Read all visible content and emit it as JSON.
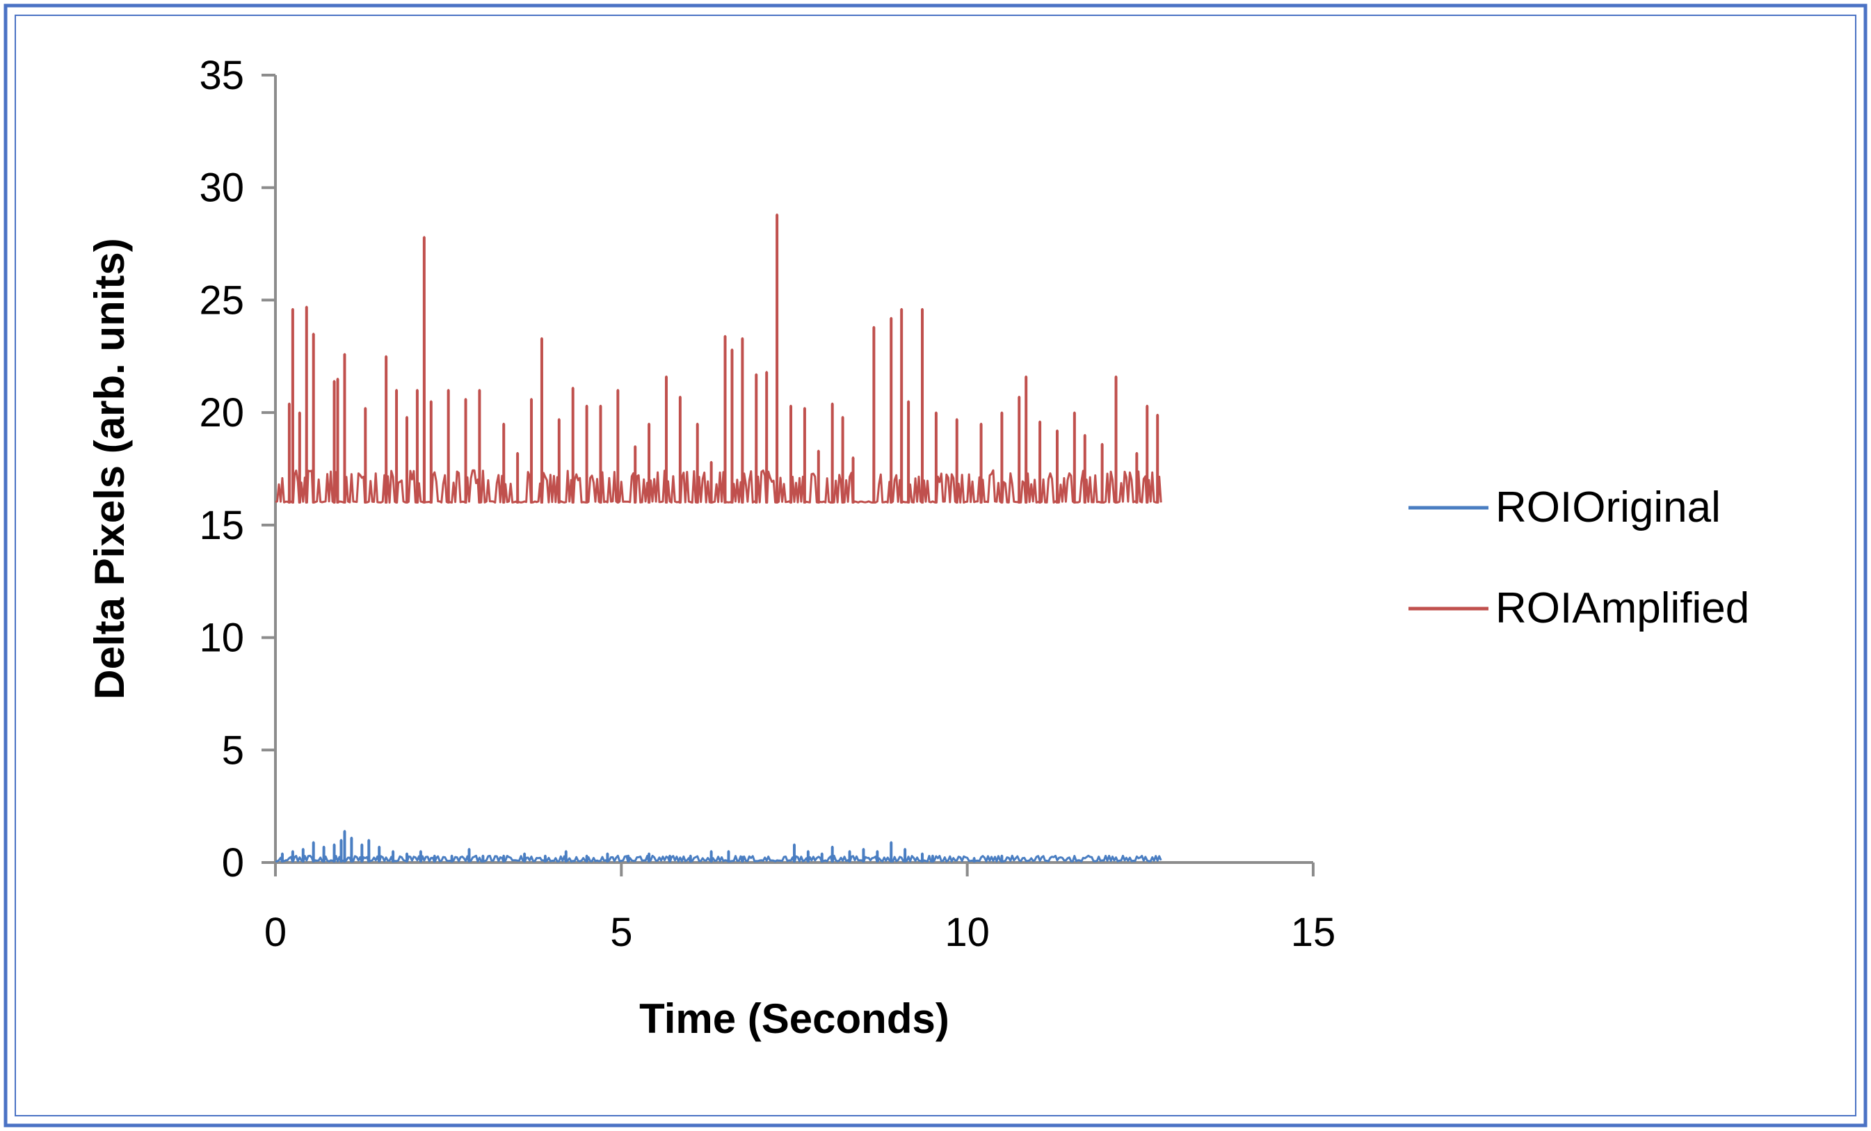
{
  "chart_data": {
    "type": "line",
    "title": "",
    "xlabel": "Time (Seconds)",
    "ylabel": "Delta Pixels (arb. units)",
    "xlim": [
      0,
      15
    ],
    "ylim": [
      0,
      35
    ],
    "x_ticks": [
      "0",
      "5",
      "10",
      "15"
    ],
    "y_ticks": [
      "0",
      "5",
      "10",
      "15",
      "20",
      "25",
      "30",
      "35"
    ],
    "grid": false,
    "legend_position": "right",
    "frame_color": "#4a72c4",
    "series": [
      {
        "name": "ROIOriginal",
        "color": "#4a7ec2",
        "x_range": [
          0,
          12.8
        ],
        "baseline": 0.05,
        "peaks": [
          [
            0.1,
            0.4
          ],
          [
            0.25,
            0.5
          ],
          [
            0.4,
            0.6
          ],
          [
            0.55,
            0.9
          ],
          [
            0.7,
            0.7
          ],
          [
            0.85,
            0.8
          ],
          [
            0.95,
            1.0
          ],
          [
            1.0,
            1.4
          ],
          [
            1.1,
            1.1
          ],
          [
            1.25,
            0.8
          ],
          [
            1.35,
            1.0
          ],
          [
            1.5,
            0.7
          ],
          [
            1.7,
            0.5
          ],
          [
            1.9,
            0.4
          ],
          [
            2.1,
            0.5
          ],
          [
            2.3,
            0.3
          ],
          [
            2.55,
            0.3
          ],
          [
            2.8,
            0.6
          ],
          [
            3.0,
            0.3
          ],
          [
            3.3,
            0.3
          ],
          [
            3.6,
            0.4
          ],
          [
            3.9,
            0.3
          ],
          [
            4.2,
            0.5
          ],
          [
            4.5,
            0.3
          ],
          [
            4.8,
            0.4
          ],
          [
            5.1,
            0.3
          ],
          [
            5.4,
            0.4
          ],
          [
            5.7,
            0.3
          ],
          [
            6.0,
            0.3
          ],
          [
            6.3,
            0.5
          ],
          [
            6.55,
            0.5
          ],
          [
            6.75,
            0.2
          ],
          [
            7.5,
            0.8
          ],
          [
            7.7,
            0.5
          ],
          [
            7.9,
            0.4
          ],
          [
            8.05,
            0.7
          ],
          [
            8.3,
            0.5
          ],
          [
            8.5,
            0.6
          ],
          [
            8.7,
            0.5
          ],
          [
            8.9,
            0.9
          ],
          [
            9.1,
            0.6
          ],
          [
            9.35,
            0.4
          ],
          [
            9.5,
            0.3
          ],
          [
            10.1,
            0.2
          ],
          [
            10.5,
            0.3
          ]
        ]
      },
      {
        "name": "ROIAmplified",
        "color": "#c0504d",
        "x_range": [
          0,
          12.8
        ],
        "baseline": 16.0,
        "peaks": [
          [
            0.2,
            20.4
          ],
          [
            0.25,
            24.6
          ],
          [
            0.35,
            20.0
          ],
          [
            0.45,
            24.7
          ],
          [
            0.55,
            23.5
          ],
          [
            0.85,
            21.4
          ],
          [
            0.9,
            21.5
          ],
          [
            1.0,
            22.6
          ],
          [
            1.3,
            20.2
          ],
          [
            1.6,
            22.5
          ],
          [
            1.75,
            21.0
          ],
          [
            1.9,
            19.8
          ],
          [
            2.05,
            21.0
          ],
          [
            2.15,
            27.8
          ],
          [
            2.25,
            20.5
          ],
          [
            2.5,
            21.0
          ],
          [
            2.75,
            20.6
          ],
          [
            2.95,
            21.0
          ],
          [
            3.3,
            19.5
          ],
          [
            3.5,
            18.2
          ],
          [
            3.7,
            20.6
          ],
          [
            3.85,
            23.3
          ],
          [
            4.1,
            19.7
          ],
          [
            4.3,
            21.1
          ],
          [
            4.5,
            20.3
          ],
          [
            4.7,
            20.3
          ],
          [
            4.95,
            21.0
          ],
          [
            5.2,
            18.5
          ],
          [
            5.4,
            19.5
          ],
          [
            5.65,
            21.6
          ],
          [
            5.85,
            20.7
          ],
          [
            6.1,
            19.5
          ],
          [
            6.3,
            17.8
          ],
          [
            6.5,
            23.4
          ],
          [
            6.6,
            22.8
          ],
          [
            6.75,
            23.3
          ],
          [
            6.95,
            21.7
          ],
          [
            7.1,
            21.8
          ],
          [
            7.25,
            28.8
          ],
          [
            7.45,
            20.3
          ],
          [
            7.65,
            20.2
          ],
          [
            7.85,
            18.3
          ],
          [
            8.05,
            20.4
          ],
          [
            8.2,
            19.8
          ],
          [
            8.35,
            18.0
          ],
          [
            8.65,
            23.8
          ],
          [
            8.9,
            24.2
          ],
          [
            9.05,
            24.6
          ],
          [
            9.15,
            20.5
          ],
          [
            9.35,
            24.6
          ],
          [
            9.55,
            20.0
          ],
          [
            9.85,
            19.7
          ],
          [
            10.2,
            19.5
          ],
          [
            10.5,
            20.0
          ],
          [
            10.75,
            20.7
          ],
          [
            10.85,
            21.6
          ],
          [
            11.05,
            19.6
          ],
          [
            11.3,
            19.2
          ],
          [
            11.55,
            20.0
          ],
          [
            11.7,
            19.0
          ],
          [
            11.95,
            18.6
          ],
          [
            12.15,
            21.6
          ],
          [
            12.45,
            18.2
          ],
          [
            12.6,
            20.3
          ],
          [
            12.75,
            19.9
          ]
        ]
      }
    ]
  }
}
